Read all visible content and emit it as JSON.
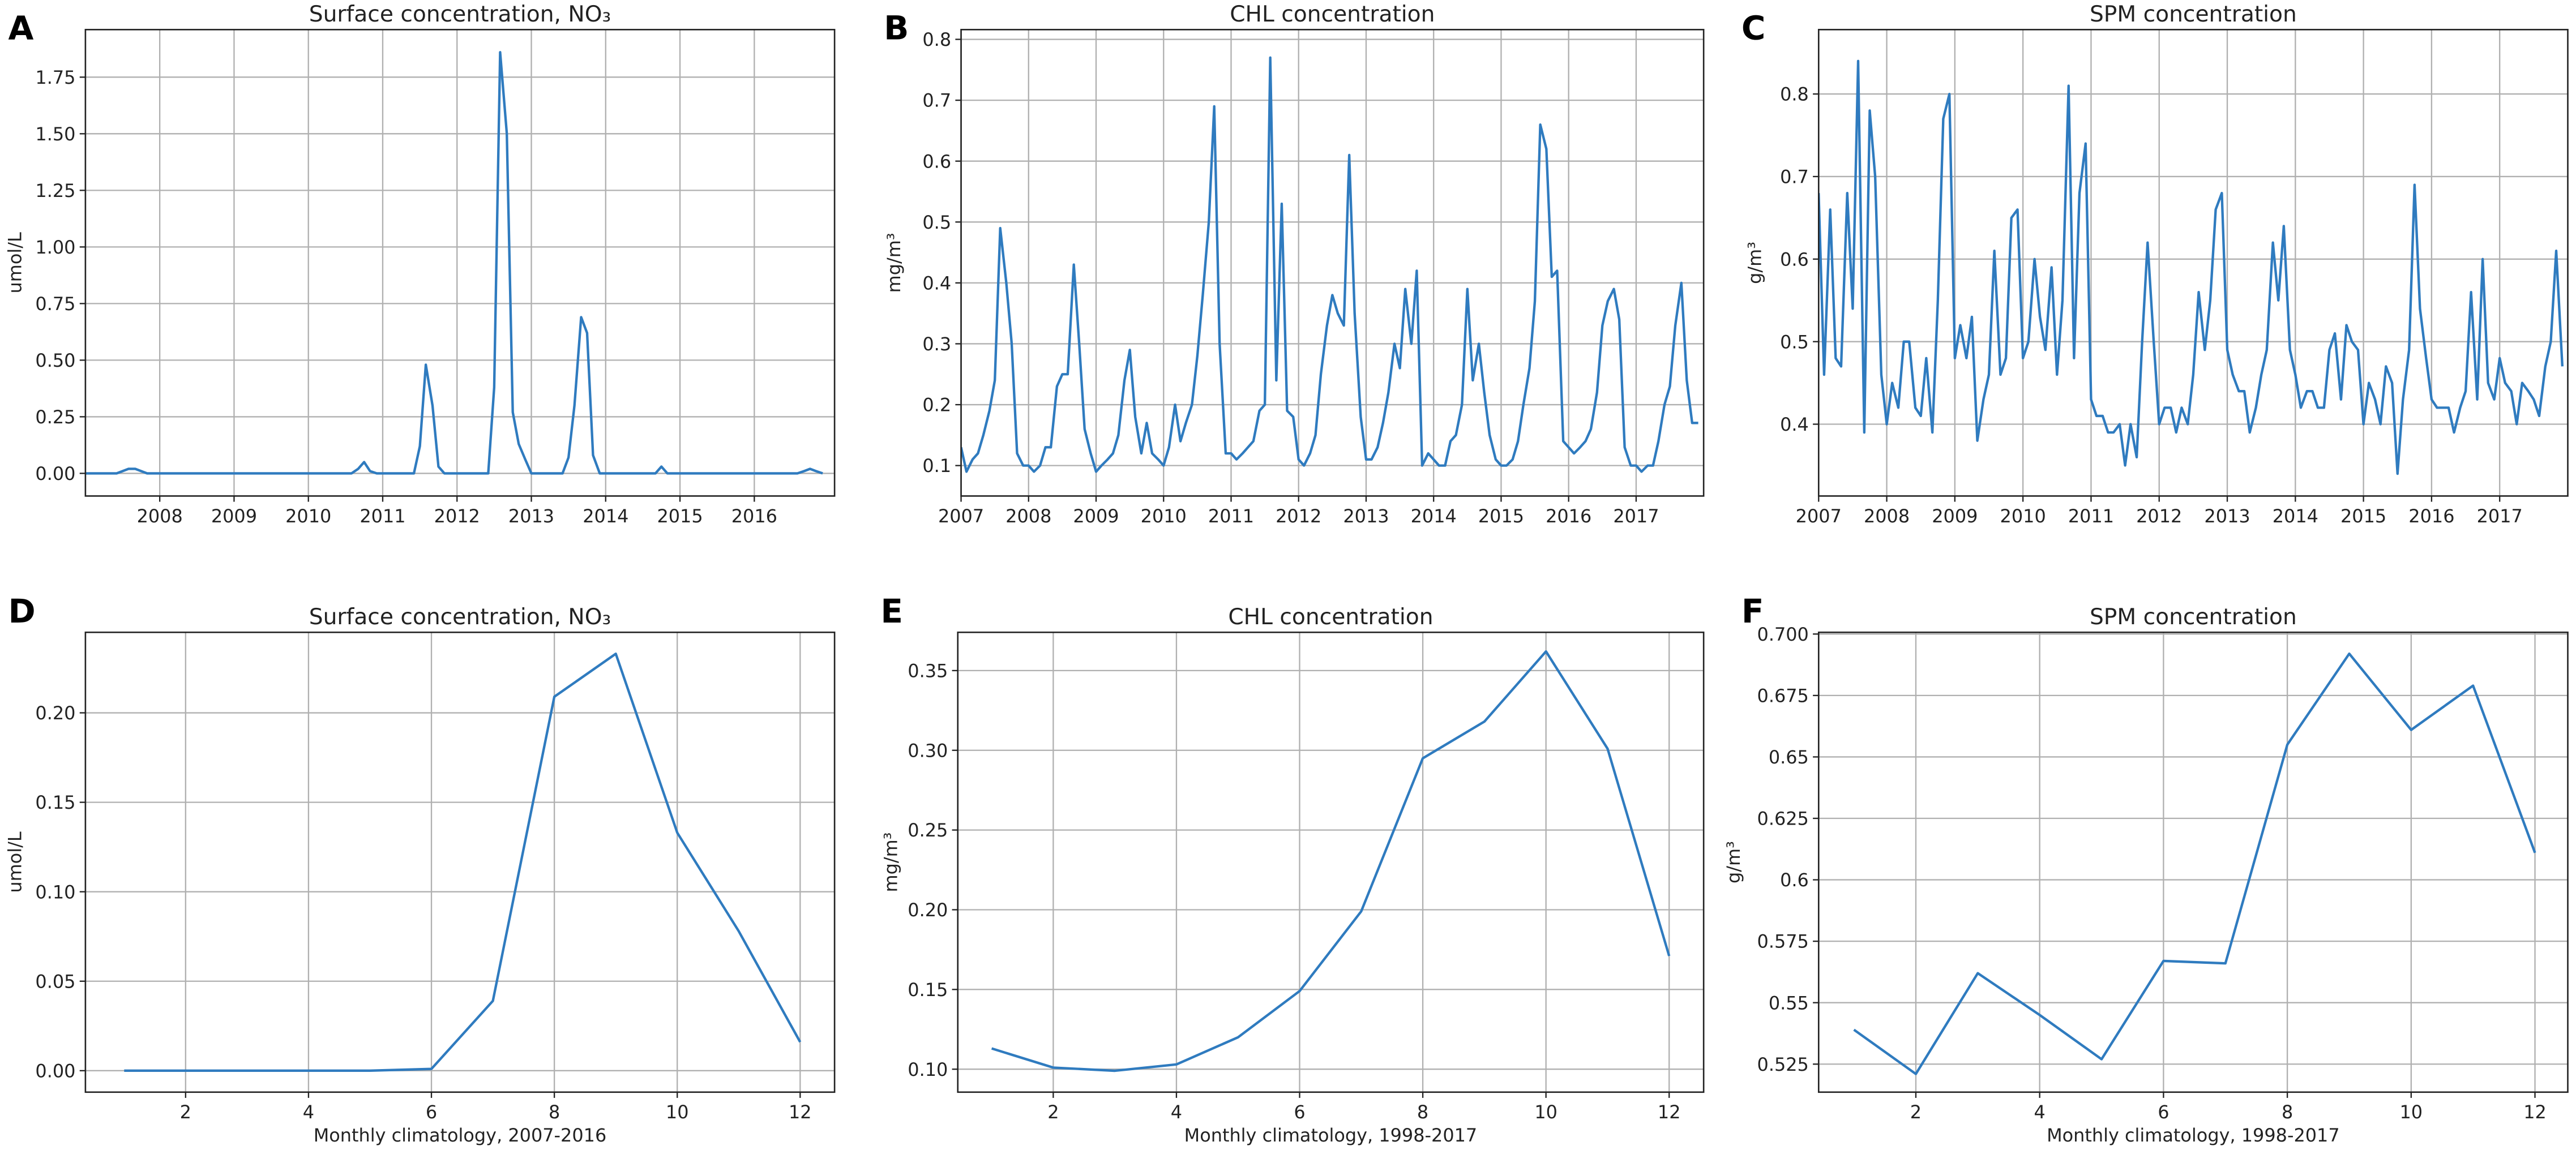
{
  "chart_data": [
    {
      "type": "line",
      "label": "A",
      "title": "Surface concentration, NO₃",
      "ylabel": "umol/L",
      "color": "#2f7bbf",
      "grid": true,
      "x": [
        2007,
        2007.08,
        2007.17,
        2007.25,
        2007.33,
        2007.42,
        2007.5,
        2007.58,
        2007.67,
        2007.75,
        2007.83,
        2007.92,
        2008,
        2008.08,
        2008.17,
        2008.25,
        2008.33,
        2008.42,
        2008.5,
        2008.58,
        2008.67,
        2008.75,
        2008.83,
        2008.92,
        2009,
        2009.08,
        2009.17,
        2009.25,
        2009.33,
        2009.42,
        2009.5,
        2009.58,
        2009.67,
        2009.75,
        2009.83,
        2009.92,
        2010,
        2010.08,
        2010.17,
        2010.25,
        2010.33,
        2010.42,
        2010.5,
        2010.58,
        2010.67,
        2010.75,
        2010.83,
        2010.92,
        2011,
        2011.08,
        2011.17,
        2011.25,
        2011.33,
        2011.42,
        2011.5,
        2011.58,
        2011.67,
        2011.75,
        2011.83,
        2011.92,
        2012,
        2012.08,
        2012.17,
        2012.25,
        2012.33,
        2012.42,
        2012.5,
        2012.58,
        2012.67,
        2012.75,
        2012.83,
        2012.92,
        2013,
        2013.08,
        2013.17,
        2013.25,
        2013.33,
        2013.42,
        2013.5,
        2013.58,
        2013.67,
        2013.75,
        2013.83,
        2013.92,
        2014,
        2014.08,
        2014.17,
        2014.25,
        2014.33,
        2014.42,
        2014.5,
        2014.58,
        2014.67,
        2014.75,
        2014.83,
        2014.92,
        2015,
        2015.08,
        2015.17,
        2015.25,
        2015.33,
        2015.42,
        2015.5,
        2015.58,
        2015.67,
        2015.75,
        2015.83,
        2015.92,
        2016,
        2016.08,
        2016.17,
        2016.25,
        2016.33,
        2016.42,
        2016.5,
        2016.58,
        2016.67,
        2016.75,
        2016.83,
        2016.92
      ],
      "values": [
        0,
        0,
        0,
        0,
        0,
        0,
        0.01,
        0.02,
        0.02,
        0.01,
        0,
        0,
        0,
        0,
        0,
        0,
        0,
        0,
        0,
        0,
        0,
        0,
        0,
        0,
        0,
        0,
        0,
        0,
        0,
        0,
        0,
        0,
        0,
        0,
        0,
        0,
        0,
        0,
        0,
        0,
        0,
        0,
        0,
        0,
        0.02,
        0.05,
        0.01,
        0,
        0,
        0,
        0,
        0,
        0,
        0,
        0.12,
        0.48,
        0.3,
        0.03,
        0,
        0,
        0,
        0,
        0,
        0,
        0,
        0,
        0.38,
        1.86,
        1.5,
        0.27,
        0.13,
        0.06,
        0,
        0,
        0,
        0,
        0,
        0,
        0.07,
        0.3,
        0.69,
        0.62,
        0.08,
        0,
        0,
        0,
        0,
        0,
        0,
        0,
        0,
        0,
        0,
        0.03,
        0,
        0,
        0,
        0,
        0,
        0,
        0,
        0,
        0,
        0,
        0,
        0,
        0,
        0,
        0,
        0,
        0,
        0,
        0,
        0,
        0,
        0,
        0.01,
        0.02,
        0.01,
        0
      ],
      "xlim": [
        2007,
        2017.08
      ],
      "xticks": [
        2008,
        2009,
        2010,
        2011,
        2012,
        2013,
        2014,
        2015,
        2016
      ],
      "ylim": [
        -0.1,
        1.96
      ],
      "yticks": [
        {
          "value": 0,
          "label": "0.00"
        },
        {
          "value": 0.25,
          "label": "0.25"
        },
        {
          "value": 0.5,
          "label": "0.50"
        },
        {
          "value": 0.75,
          "label": "0.75"
        },
        {
          "value": 1,
          "label": "1.00"
        },
        {
          "value": 1.25,
          "label": "1.25"
        },
        {
          "value": 1.5,
          "label": "1.50"
        },
        {
          "value": 1.75,
          "label": "1.75"
        }
      ]
    },
    {
      "type": "line",
      "label": "B",
      "title": "CHL concentration",
      "ylabel": "mg/m³",
      "color": "#2f7bbf",
      "grid": true,
      "x": [
        2007,
        2007.08,
        2007.17,
        2007.25,
        2007.33,
        2007.42,
        2007.5,
        2007.58,
        2007.67,
        2007.75,
        2007.83,
        2007.92,
        2008,
        2008.08,
        2008.17,
        2008.25,
        2008.33,
        2008.42,
        2008.5,
        2008.58,
        2008.67,
        2008.75,
        2008.83,
        2008.92,
        2009,
        2009.08,
        2009.17,
        2009.25,
        2009.33,
        2009.42,
        2009.5,
        2009.58,
        2009.67,
        2009.75,
        2009.83,
        2009.92,
        2010,
        2010.08,
        2010.17,
        2010.25,
        2010.33,
        2010.42,
        2010.5,
        2010.58,
        2010.67,
        2010.75,
        2010.83,
        2010.92,
        2011,
        2011.08,
        2011.17,
        2011.25,
        2011.33,
        2011.42,
        2011.5,
        2011.58,
        2011.67,
        2011.75,
        2011.83,
        2011.92,
        2012,
        2012.08,
        2012.17,
        2012.25,
        2012.33,
        2012.42,
        2012.5,
        2012.58,
        2012.67,
        2012.75,
        2012.83,
        2012.92,
        2013,
        2013.08,
        2013.17,
        2013.25,
        2013.33,
        2013.42,
        2013.5,
        2013.58,
        2013.67,
        2013.75,
        2013.83,
        2013.92,
        2014,
        2014.08,
        2014.17,
        2014.25,
        2014.33,
        2014.42,
        2014.5,
        2014.58,
        2014.67,
        2014.75,
        2014.83,
        2014.92,
        2015,
        2015.08,
        2015.17,
        2015.25,
        2015.33,
        2015.42,
        2015.5,
        2015.58,
        2015.67,
        2015.75,
        2015.83,
        2015.92,
        2016,
        2016.08,
        2016.17,
        2016.25,
        2016.33,
        2016.42,
        2016.5,
        2016.58,
        2016.67,
        2016.75,
        2016.83,
        2016.92,
        2017,
        2017.08,
        2017.17,
        2017.25,
        2017.33,
        2017.42,
        2017.5,
        2017.58,
        2017.67,
        2017.75,
        2017.83,
        2017.92
      ],
      "values": [
        0.13,
        0.09,
        0.11,
        0.12,
        0.15,
        0.19,
        0.24,
        0.49,
        0.4,
        0.3,
        0.12,
        0.1,
        0.1,
        0.09,
        0.1,
        0.13,
        0.13,
        0.23,
        0.25,
        0.25,
        0.43,
        0.3,
        0.16,
        0.12,
        0.09,
        0.1,
        0.11,
        0.12,
        0.15,
        0.24,
        0.29,
        0.18,
        0.12,
        0.17,
        0.12,
        0.11,
        0.1,
        0.13,
        0.2,
        0.14,
        0.17,
        0.2,
        0.28,
        0.38,
        0.5,
        0.69,
        0.3,
        0.12,
        0.12,
        0.11,
        0.12,
        0.13,
        0.14,
        0.19,
        0.2,
        0.77,
        0.24,
        0.53,
        0.19,
        0.18,
        0.11,
        0.1,
        0.12,
        0.15,
        0.25,
        0.33,
        0.38,
        0.35,
        0.33,
        0.61,
        0.35,
        0.18,
        0.11,
        0.11,
        0.13,
        0.17,
        0.22,
        0.3,
        0.26,
        0.39,
        0.3,
        0.42,
        0.1,
        0.12,
        0.11,
        0.1,
        0.1,
        0.14,
        0.15,
        0.2,
        0.39,
        0.24,
        0.3,
        0.22,
        0.15,
        0.11,
        0.1,
        0.1,
        0.11,
        0.14,
        0.2,
        0.26,
        0.37,
        0.66,
        0.62,
        0.41,
        0.42,
        0.14,
        0.13,
        0.12,
        0.13,
        0.14,
        0.16,
        0.22,
        0.33,
        0.37,
        0.39,
        0.34,
        0.13,
        0.1,
        0.1,
        0.09,
        0.1,
        0.1,
        0.14,
        0.2,
        0.23,
        0.33,
        0.4,
        0.24,
        0.17,
        0.17
      ],
      "xlim": [
        2007,
        2018
      ],
      "xticks": [
        2007,
        2008,
        2009,
        2010,
        2011,
        2012,
        2013,
        2014,
        2015,
        2016,
        2017
      ],
      "ylim": [
        0.05,
        0.816
      ],
      "yticks": [
        0.1,
        0.2,
        0.3,
        0.4,
        0.5,
        0.6,
        0.7,
        0.8
      ]
    },
    {
      "type": "line",
      "label": "C",
      "title": "SPM concentration",
      "ylabel": "g/m³",
      "color": "#2f7bbf",
      "grid": true,
      "x": [
        2007,
        2007.08,
        2007.17,
        2007.25,
        2007.33,
        2007.42,
        2007.5,
        2007.58,
        2007.67,
        2007.75,
        2007.83,
        2007.92,
        2008,
        2008.08,
        2008.17,
        2008.25,
        2008.33,
        2008.42,
        2008.5,
        2008.58,
        2008.67,
        2008.75,
        2008.83,
        2008.92,
        2009,
        2009.08,
        2009.17,
        2009.25,
        2009.33,
        2009.42,
        2009.5,
        2009.58,
        2009.67,
        2009.75,
        2009.83,
        2009.92,
        2010,
        2010.08,
        2010.17,
        2010.25,
        2010.33,
        2010.42,
        2010.5,
        2010.58,
        2010.67,
        2010.75,
        2010.83,
        2010.92,
        2011,
        2011.08,
        2011.17,
        2011.25,
        2011.33,
        2011.42,
        2011.5,
        2011.58,
        2011.67,
        2011.75,
        2011.83,
        2011.92,
        2012,
        2012.08,
        2012.17,
        2012.25,
        2012.33,
        2012.42,
        2012.5,
        2012.58,
        2012.67,
        2012.75,
        2012.83,
        2012.92,
        2013,
        2013.08,
        2013.17,
        2013.25,
        2013.33,
        2013.42,
        2013.5,
        2013.58,
        2013.67,
        2013.75,
        2013.83,
        2013.92,
        2014,
        2014.08,
        2014.17,
        2014.25,
        2014.33,
        2014.42,
        2014.5,
        2014.58,
        2014.67,
        2014.75,
        2014.83,
        2014.92,
        2015,
        2015.08,
        2015.17,
        2015.25,
        2015.33,
        2015.42,
        2015.5,
        2015.58,
        2015.67,
        2015.75,
        2015.83,
        2015.92,
        2016,
        2016.08,
        2016.17,
        2016.25,
        2016.33,
        2016.42,
        2016.5,
        2016.58,
        2016.67,
        2016.75,
        2016.83,
        2016.92,
        2017,
        2017.08,
        2017.17,
        2017.25,
        2017.33,
        2017.42,
        2017.5,
        2017.58,
        2017.67,
        2017.75,
        2017.83,
        2017.92
      ],
      "values": [
        0.68,
        0.46,
        0.66,
        0.48,
        0.47,
        0.68,
        0.54,
        0.84,
        0.39,
        0.78,
        0.7,
        0.46,
        0.4,
        0.45,
        0.42,
        0.5,
        0.5,
        0.42,
        0.41,
        0.48,
        0.39,
        0.55,
        0.77,
        0.8,
        0.48,
        0.52,
        0.48,
        0.53,
        0.38,
        0.43,
        0.46,
        0.61,
        0.46,
        0.48,
        0.65,
        0.66,
        0.48,
        0.5,
        0.6,
        0.53,
        0.49,
        0.59,
        0.46,
        0.55,
        0.81,
        0.48,
        0.68,
        0.74,
        0.43,
        0.41,
        0.41,
        0.39,
        0.39,
        0.4,
        0.35,
        0.4,
        0.36,
        0.5,
        0.62,
        0.5,
        0.4,
        0.42,
        0.42,
        0.39,
        0.42,
        0.4,
        0.46,
        0.56,
        0.49,
        0.55,
        0.66,
        0.68,
        0.49,
        0.46,
        0.44,
        0.44,
        0.39,
        0.42,
        0.46,
        0.49,
        0.62,
        0.55,
        0.64,
        0.49,
        0.46,
        0.42,
        0.44,
        0.44,
        0.42,
        0.42,
        0.49,
        0.51,
        0.43,
        0.52,
        0.5,
        0.49,
        0.4,
        0.45,
        0.43,
        0.4,
        0.47,
        0.45,
        0.34,
        0.43,
        0.49,
        0.69,
        0.54,
        0.48,
        0.43,
        0.42,
        0.42,
        0.42,
        0.39,
        0.42,
        0.44,
        0.56,
        0.43,
        0.6,
        0.45,
        0.43,
        0.48,
        0.45,
        0.44,
        0.4,
        0.45,
        0.44,
        0.43,
        0.41,
        0.47,
        0.5,
        0.61,
        0.47
      ],
      "xlim": [
        2007,
        2018
      ],
      "xticks": [
        2007,
        2008,
        2009,
        2010,
        2011,
        2012,
        2013,
        2014,
        2015,
        2016,
        2017
      ],
      "ylim": [
        0.313,
        0.878
      ],
      "yticks": [
        0.4,
        0.5,
        0.6,
        0.7,
        0.8
      ]
    },
    {
      "type": "line",
      "label": "D",
      "title": "Surface concentration, NO₃",
      "ylabel": "umol/L",
      "xlabel": "Monthly climatology, 2007-2016",
      "color": "#2f7bbf",
      "grid": true,
      "x": [
        1,
        2,
        3,
        4,
        5,
        6,
        7,
        8,
        9,
        10,
        11,
        12
      ],
      "values": [
        0,
        0,
        0,
        0,
        0,
        0.001,
        0.039,
        0.209,
        0.233,
        0.133,
        0.078,
        0.016
      ],
      "xlim": [
        0.37,
        12.56
      ],
      "xticks": [
        2,
        4,
        6,
        8,
        10,
        12
      ],
      "ylim": [
        -0.012,
        0.245
      ],
      "yticks": [
        {
          "value": 0,
          "label": "0.00"
        },
        {
          "value": 0.05,
          "label": "0.05"
        },
        {
          "value": 0.1,
          "label": "0.10"
        },
        {
          "value": 0.15,
          "label": "0.15"
        },
        {
          "value": 0.2,
          "label": "0.20"
        }
      ]
    },
    {
      "type": "line",
      "label": "E",
      "title": "CHL concentration",
      "ylabel": "mg/m³",
      "xlabel": "Monthly climatology, 1998-2017",
      "color": "#2f7bbf",
      "grid": true,
      "x": [
        1,
        2,
        3,
        4,
        5,
        6,
        7,
        8,
        9,
        10,
        11,
        12
      ],
      "values": [
        0.113,
        0.101,
        0.099,
        0.103,
        0.12,
        0.149,
        0.199,
        0.295,
        0.318,
        0.362,
        0.301,
        0.171
      ],
      "xlim": [
        0.45,
        12.56
      ],
      "xticks": [
        2,
        4,
        6,
        8,
        10,
        12
      ],
      "ylim": [
        0.0856,
        0.374
      ],
      "yticks": [
        {
          "value": 0.1,
          "label": "0.10"
        },
        {
          "value": 0.15,
          "label": "0.15"
        },
        {
          "value": 0.2,
          "label": "0.20"
        },
        {
          "value": 0.25,
          "label": "0.25"
        },
        {
          "value": 0.3,
          "label": "0.30"
        },
        {
          "value": 0.35,
          "label": "0.35"
        }
      ]
    },
    {
      "type": "line",
      "label": "F",
      "title": "SPM concentration",
      "ylabel": "g/m³",
      "xlabel": "Monthly climatology, 1998-2017",
      "color": "#2f7bbf",
      "grid": true,
      "x": [
        1,
        2,
        3,
        4,
        5,
        6,
        7,
        8,
        9,
        10,
        11,
        12
      ],
      "values": [
        0.539,
        0.521,
        0.562,
        0.545,
        0.527,
        0.567,
        0.566,
        0.655,
        0.692,
        0.661,
        0.679,
        0.611
      ],
      "xlim": [
        0.43,
        12.53
      ],
      "xticks": [
        2,
        4,
        6,
        8,
        10,
        12
      ],
      "ylim": [
        0.5136,
        0.7007
      ],
      "yticks": [
        0.525,
        0.55,
        0.575,
        0.6,
        0.625,
        0.65,
        0.675,
        {
          "value": 0.7,
          "label": "0.700"
        }
      ]
    }
  ]
}
